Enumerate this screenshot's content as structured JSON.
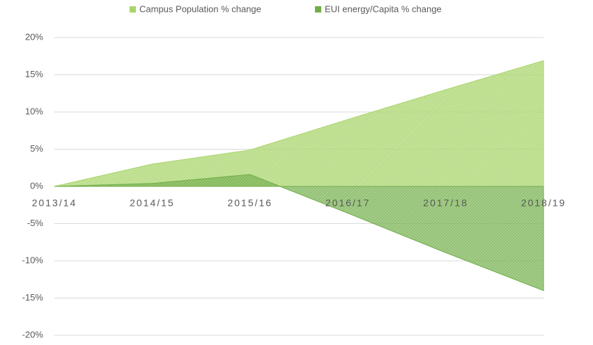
{
  "chart_data": {
    "type": "area",
    "categories": [
      "2013/14",
      "2014/15",
      "2015/16",
      "2016/17",
      "2017/18",
      "2018/19"
    ],
    "series": [
      {
        "name": "Campus Population % change",
        "color": "#a9d46c",
        "values": [
          0,
          3.0,
          4.9,
          9.0,
          13.0,
          16.9
        ]
      },
      {
        "name": "EUI energy/Capita % change",
        "color": "#70ad47",
        "values": [
          0,
          0.4,
          1.6,
          -3.6,
          -8.9,
          -14.0
        ]
      }
    ],
    "ylim": [
      -20,
      20
    ],
    "yticks": [
      {
        "value": 20,
        "label": "20%"
      },
      {
        "value": 15,
        "label": "15%"
      },
      {
        "value": 10,
        "label": "10%"
      },
      {
        "value": 5,
        "label": "5%"
      },
      {
        "value": 0,
        "label": "0%"
      },
      {
        "value": -5,
        "label": "-5%"
      },
      {
        "value": -10,
        "label": "-10%"
      },
      {
        "value": -15,
        "label": "-15%"
      },
      {
        "value": -20,
        "label": "-20%"
      }
    ],
    "grid": true,
    "legend": "top"
  }
}
